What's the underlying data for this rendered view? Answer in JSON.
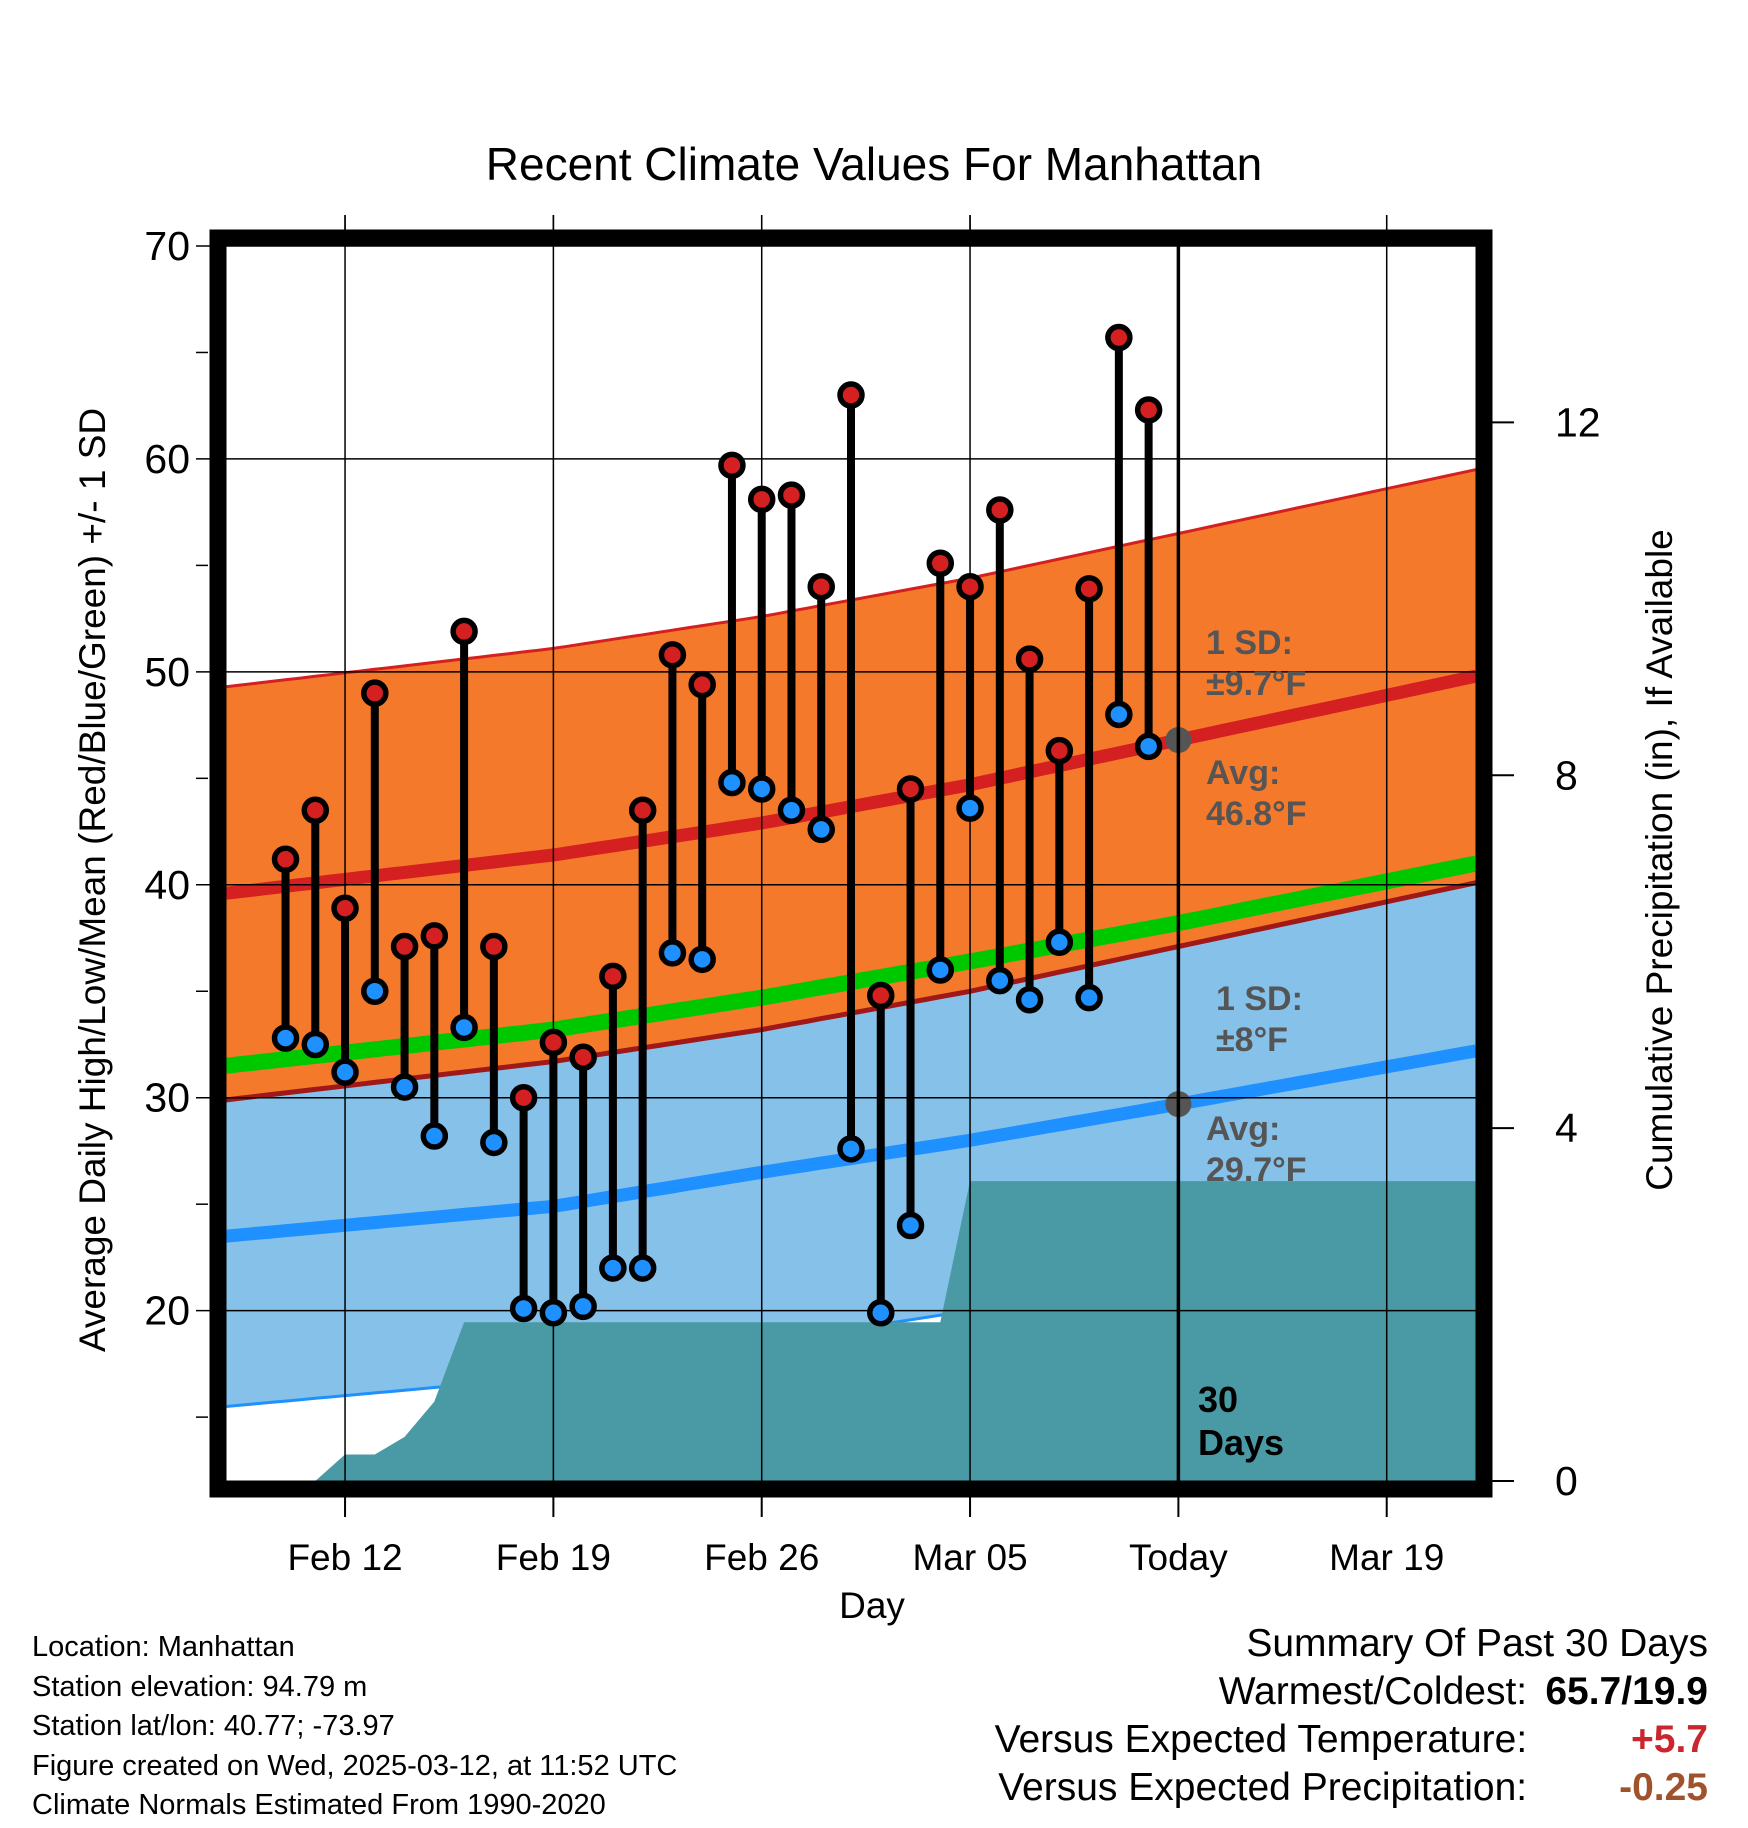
{
  "chart_data": {
    "type": "line",
    "title": "Recent Climate Values For Manhattan",
    "xlabel": "Day",
    "ylabel": "Average Daily High/Low/Mean (Red/Blue/Green) +/- 1 SD",
    "y2label": "Cumulative Precipitation (in), If Available",
    "ylim": [
      12,
      70
    ],
    "y2lim": [
      0,
      14
    ],
    "xlim": [
      "2025-02-08",
      "2025-03-22"
    ],
    "x_ticks": [
      {
        "date": "2025-02-12",
        "label": "Feb 12"
      },
      {
        "date": "2025-02-19",
        "label": "Feb 19"
      },
      {
        "date": "2025-02-26",
        "label": "Feb 26"
      },
      {
        "date": "2025-03-05",
        "label": "Mar 05"
      },
      {
        "date": "2025-03-12",
        "label": "Today"
      },
      {
        "date": "2025-03-19",
        "label": "Mar 19"
      }
    ],
    "y_ticks": [
      "20",
      "30",
      "40",
      "50",
      "60",
      "70"
    ],
    "y2_ticks": [
      "0",
      "4",
      "8",
      "12"
    ],
    "grid": true,
    "today": "2025-03-12",
    "observed": [
      {
        "date": "2025-02-10",
        "high": 41.2,
        "low": 32.8
      },
      {
        "date": "2025-02-11",
        "high": 43.5,
        "low": 32.5
      },
      {
        "date": "2025-02-12",
        "high": 38.9,
        "low": 31.2
      },
      {
        "date": "2025-02-13",
        "high": 49.0,
        "low": 35.0
      },
      {
        "date": "2025-02-14",
        "high": 37.1,
        "low": 30.5
      },
      {
        "date": "2025-02-15",
        "high": 37.6,
        "low": 28.2
      },
      {
        "date": "2025-02-16",
        "high": 51.9,
        "low": 33.3
      },
      {
        "date": "2025-02-17",
        "high": 37.1,
        "low": 27.9
      },
      {
        "date": "2025-02-18",
        "high": 30.0,
        "low": 20.1
      },
      {
        "date": "2025-02-19",
        "high": 32.6,
        "low": 19.9
      },
      {
        "date": "2025-02-20",
        "high": 31.9,
        "low": 20.2
      },
      {
        "date": "2025-02-21",
        "high": 35.7,
        "low": 22.0
      },
      {
        "date": "2025-02-22",
        "high": 43.5,
        "low": 22.0
      },
      {
        "date": "2025-02-23",
        "high": 50.8,
        "low": 36.8
      },
      {
        "date": "2025-02-24",
        "high": 49.4,
        "low": 36.5
      },
      {
        "date": "2025-02-25",
        "high": 59.7,
        "low": 44.8
      },
      {
        "date": "2025-02-26",
        "high": 58.1,
        "low": 44.5
      },
      {
        "date": "2025-02-27",
        "high": 58.3,
        "low": 43.5
      },
      {
        "date": "2025-02-28",
        "high": 54.0,
        "low": 42.6
      },
      {
        "date": "2025-03-01",
        "high": 63.0,
        "low": 27.6
      },
      {
        "date": "2025-03-02",
        "high": 34.8,
        "low": 19.9
      },
      {
        "date": "2025-03-03",
        "high": 44.5,
        "low": 24.0
      },
      {
        "date": "2025-03-04",
        "high": 55.1,
        "low": 36.0
      },
      {
        "date": "2025-03-05",
        "high": 54.0,
        "low": 43.6
      },
      {
        "date": "2025-03-06",
        "high": 57.6,
        "low": 35.5
      },
      {
        "date": "2025-03-07",
        "high": 50.6,
        "low": 34.6
      },
      {
        "date": "2025-03-08",
        "high": 46.3,
        "low": 37.3
      },
      {
        "date": "2025-03-09",
        "high": 53.9,
        "low": 34.7
      },
      {
        "date": "2025-03-10",
        "high": 65.7,
        "low": 48.0
      },
      {
        "date": "2025-03-11",
        "high": 62.3,
        "low": 46.5
      }
    ],
    "normals": {
      "dates": [
        "2025-02-08",
        "2025-02-19",
        "2025-02-26",
        "2025-03-05",
        "2025-03-12",
        "2025-03-22"
      ],
      "high_avg": [
        39.6,
        41.4,
        42.9,
        44.7,
        46.8,
        49.8
      ],
      "low_avg": [
        23.5,
        24.9,
        26.5,
        28.0,
        29.7,
        32.2
      ],
      "mean_avg": [
        31.5,
        33.2,
        34.7,
        36.4,
        38.2,
        41.0
      ],
      "high_sd": 9.7,
      "low_sd": 8.0
    },
    "precip_cumulative": [
      {
        "date": "2025-02-08",
        "value": 0.0
      },
      {
        "date": "2025-02-11",
        "value": 0.0
      },
      {
        "date": "2025-02-12",
        "value": 0.3
      },
      {
        "date": "2025-02-13",
        "value": 0.3
      },
      {
        "date": "2025-02-14",
        "value": 0.5
      },
      {
        "date": "2025-02-15",
        "value": 0.9
      },
      {
        "date": "2025-02-16",
        "value": 1.8
      },
      {
        "date": "2025-02-20",
        "value": 1.8
      },
      {
        "date": "2025-03-04",
        "value": 1.8
      },
      {
        "date": "2025-03-05",
        "value": 3.4
      },
      {
        "date": "2025-03-22",
        "value": 3.4
      }
    ],
    "annotations": {
      "high_sd_label": [
        "1 SD:",
        "±9.7°F"
      ],
      "high_avg_label": [
        "Avg:",
        "46.8°F"
      ],
      "low_sd_label": [
        "1 SD:",
        "±8°F"
      ],
      "low_avg_label": [
        "Avg:",
        "29.7°F"
      ],
      "days_label": [
        "30",
        "Days"
      ]
    },
    "colors": {
      "high_band": "#f5792b",
      "high_line": "#d42020",
      "high_dot": "#d42020",
      "low_band": "#85c1e9",
      "low_line": "#1e90ff",
      "low_dot": "#1e90ff",
      "mean_line": "#00c800",
      "precip": "#4a9aa5",
      "annotation": "#555555"
    }
  },
  "info": {
    "location": "Location: Manhattan",
    "elevation": "Station elevation: 94.79 m",
    "latlon": "Station lat/lon: 40.77; -73.97",
    "created": "Figure created on Wed, 2025-03-12, at 11:52 UTC",
    "normals": "Climate Normals Estimated From 1990-2020"
  },
  "summary": {
    "title": "Summary Of Past 30 Days",
    "warm_label": "Warmest/Coldest:",
    "warm_value": "65.7/19.9",
    "temp_label": "Versus Expected Temperature:",
    "temp_value": "+5.7",
    "temp_color": "#c8282d",
    "precip_label": "Versus Expected Precipitation:",
    "precip_value": "-0.25",
    "precip_color": "#a0522d"
  }
}
